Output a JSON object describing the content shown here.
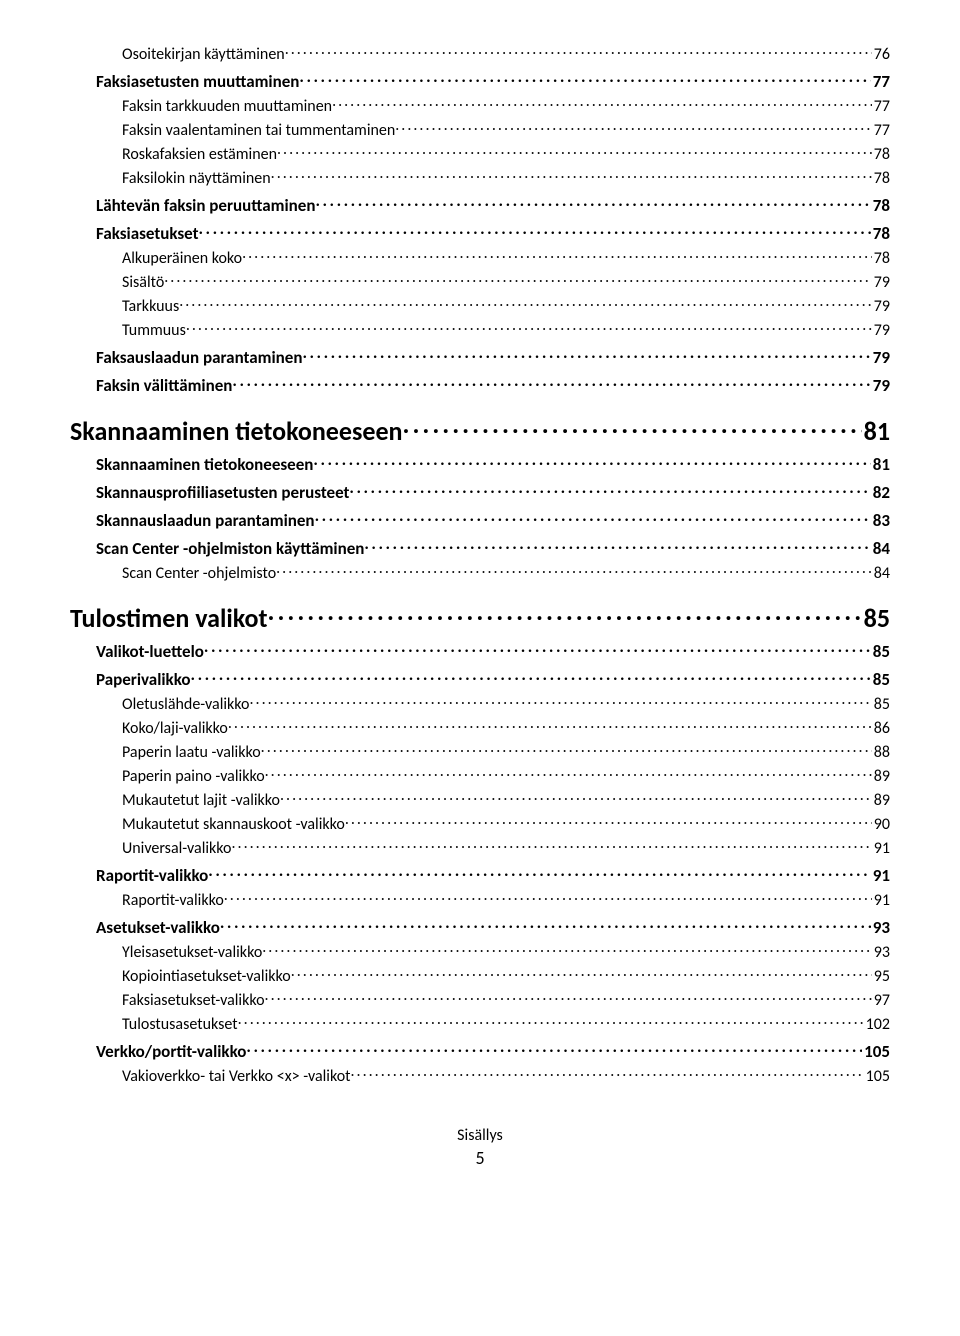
{
  "toc": [
    {
      "level": 3,
      "label": "Osoitekirjan käyttäminen",
      "page": "76"
    },
    {
      "level": 2,
      "label": "Faksiasetusten muuttaminen",
      "page": "77"
    },
    {
      "level": 3,
      "label": "Faksin tarkkuuden muuttaminen",
      "page": "77"
    },
    {
      "level": 3,
      "label": "Faksin vaalentaminen tai tummentaminen",
      "page": "77"
    },
    {
      "level": 3,
      "label": "Roskafaksien estäminen",
      "page": "78"
    },
    {
      "level": 3,
      "label": "Faksilokin näyttäminen",
      "page": "78"
    },
    {
      "level": 2,
      "label": "Lähtevän faksin peruuttaminen",
      "page": "78"
    },
    {
      "level": 2,
      "label": "Faksiasetukset",
      "page": "78"
    },
    {
      "level": 3,
      "label": "Alkuperäinen koko",
      "page": "78"
    },
    {
      "level": 3,
      "label": "Sisältö",
      "page": "79"
    },
    {
      "level": 3,
      "label": "Tarkkuus",
      "page": "79"
    },
    {
      "level": 3,
      "label": "Tummuus",
      "page": "79"
    },
    {
      "level": 2,
      "label": "Faksauslaadun parantaminen",
      "page": "79"
    },
    {
      "level": 2,
      "label": "Faksin välittäminen",
      "page": "79"
    },
    {
      "level": 1,
      "label": "Skannaaminen tietokoneeseen",
      "page": "81"
    },
    {
      "level": 2,
      "label": "Skannaaminen tietokoneeseen",
      "page": "81"
    },
    {
      "level": 2,
      "label": "Skannausprofiiliasetusten perusteet",
      "page": "82"
    },
    {
      "level": 2,
      "label": "Skannauslaadun parantaminen",
      "page": "83"
    },
    {
      "level": 2,
      "label": "Scan Center -ohjelmiston käyttäminen",
      "page": "84"
    },
    {
      "level": 3,
      "label": "Scan Center -ohjelmisto",
      "page": "84"
    },
    {
      "level": 1,
      "label": "Tulostimen valikot",
      "page": "85"
    },
    {
      "level": 2,
      "label": "Valikot-luettelo",
      "page": "85"
    },
    {
      "level": 2,
      "label": "Paperivalikko",
      "page": "85"
    },
    {
      "level": 3,
      "label": "Oletuslähde-valikko",
      "page": "85"
    },
    {
      "level": 3,
      "label": "Koko/laji-valikko",
      "page": "86"
    },
    {
      "level": 3,
      "label": "Paperin laatu -valikko",
      "page": "88"
    },
    {
      "level": 3,
      "label": "Paperin paino -valikko",
      "page": "89"
    },
    {
      "level": 3,
      "label": "Mukautetut lajit -valikko",
      "page": "89"
    },
    {
      "level": 3,
      "label": "Mukautetut skannauskoot -valikko",
      "page": "90"
    },
    {
      "level": 3,
      "label": "Universal-valikko",
      "page": "91"
    },
    {
      "level": 2,
      "label": "Raportit-valikko",
      "page": "91"
    },
    {
      "level": 3,
      "label": "Raportit-valikko",
      "page": "91"
    },
    {
      "level": 2,
      "label": "Asetukset-valikko",
      "page": "93"
    },
    {
      "level": 3,
      "label": "Yleisasetukset-valikko",
      "page": "93"
    },
    {
      "level": 3,
      "label": "Kopiointiasetukset-valikko",
      "page": "95"
    },
    {
      "level": 3,
      "label": "Faksiasetukset-valikko",
      "page": "97"
    },
    {
      "level": 3,
      "label": "Tulostusasetukset",
      "page": "102"
    },
    {
      "level": 2,
      "label": "Verkko/portit-valikko",
      "page": "105"
    },
    {
      "level": 3,
      "label": "Vakioverkko- tai Verkko <x> -valikot",
      "page": "105"
    }
  ],
  "footer": {
    "title": "Sisällys",
    "page": "5"
  }
}
